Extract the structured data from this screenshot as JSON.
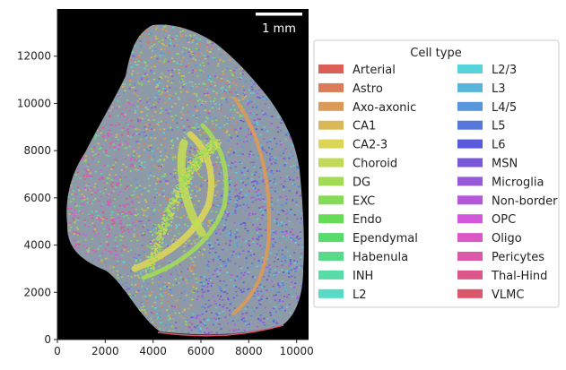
{
  "chart_data": {
    "type": "scatter",
    "subtype": "spatial-transcriptomics-cell-map",
    "xlim": [
      0,
      10500
    ],
    "ylim": [
      0,
      14000
    ],
    "x_ticks": [
      0,
      2000,
      4000,
      6000,
      8000,
      10000
    ],
    "y_ticks": [
      0,
      2000,
      4000,
      6000,
      8000,
      10000,
      12000
    ],
    "background": "#000000",
    "scale_bar": {
      "label": "1 mm"
    },
    "legend": {
      "title": "Cell type",
      "placement": "center-right",
      "columns": 2,
      "entries": [
        {
          "name": "Arterial",
          "color": "#db5f57"
        },
        {
          "name": "Astro",
          "color": "#db7b57"
        },
        {
          "name": "Axo-axonic",
          "color": "#db9a57"
        },
        {
          "name": "CA1",
          "color": "#dbb857"
        },
        {
          "name": "CA2-3",
          "color": "#dbd657"
        },
        {
          "name": "Choroid",
          "color": "#c2db57"
        },
        {
          "name": "DG",
          "color": "#a3db57"
        },
        {
          "name": "EXC",
          "color": "#85db57"
        },
        {
          "name": "Endo",
          "color": "#66db57"
        },
        {
          "name": "Ependymal",
          "color": "#57db6b"
        },
        {
          "name": "Habenula",
          "color": "#57db89"
        },
        {
          "name": "INH",
          "color": "#57dba7"
        },
        {
          "name": "L2",
          "color": "#57dbc6"
        },
        {
          "name": "L2/3",
          "color": "#57d3db"
        },
        {
          "name": "L3",
          "color": "#57b5db"
        },
        {
          "name": "L4/5",
          "color": "#5796db"
        },
        {
          "name": "L5",
          "color": "#5778db"
        },
        {
          "name": "L6",
          "color": "#5959db"
        },
        {
          "name": "MSN",
          "color": "#7857db"
        },
        {
          "name": "Microglia",
          "color": "#9657db"
        },
        {
          "name": "Non-border",
          "color": "#b557db"
        },
        {
          "name": "OPC",
          "color": "#d357db"
        },
        {
          "name": "Oligo",
          "color": "#db57c6"
        },
        {
          "name": "Pericytes",
          "color": "#db57a7"
        },
        {
          "name": "Thal-Hind",
          "color": "#db5789"
        },
        {
          "name": "VLMC",
          "color": "#db576b"
        }
      ]
    }
  }
}
